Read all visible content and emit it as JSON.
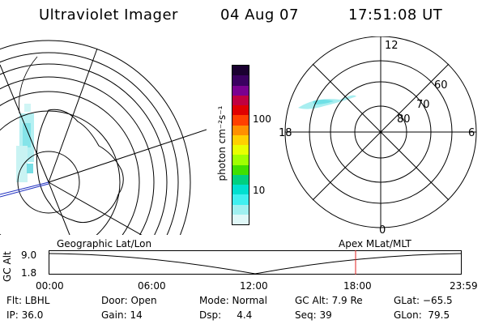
{
  "header": {
    "instrument": "Ultraviolet Imager",
    "date": "04 Aug 07",
    "time": "17:51:08 UT"
  },
  "colorbar": {
    "unit_label": "photon cm⁻²s⁻¹",
    "ticks": [
      "100",
      "10"
    ],
    "colors": [
      "#1a0030",
      "#3a0060",
      "#7a0090",
      "#c00040",
      "#e00000",
      "#ff4000",
      "#ff9000",
      "#ffd000",
      "#e8ff00",
      "#a0ff00",
      "#40e000",
      "#00d080",
      "#00e0d0",
      "#40f0f0",
      "#a0f0f0",
      "#e0f8f8"
    ]
  },
  "polar_map": {
    "mlt_labels": [
      "12",
      "18",
      "6",
      "0"
    ],
    "lat_labels": [
      "60",
      "70",
      "80"
    ]
  },
  "timeline": {
    "axis_label": "GC Alt",
    "y_ticks": [
      "9.0",
      "1.8"
    ],
    "left_caption": "Geographic Lat/Lon",
    "right_caption": "Apex  MLat/MLT",
    "x_ticks": [
      "00:00",
      "06:00",
      "12:00",
      "18:00",
      "23:59"
    ],
    "marker_fraction": 0.7438
  },
  "info": {
    "flt": "Flt: LBHL",
    "ip": "IP: 36.0",
    "door": "Door: Open",
    "gain": "Gain: 14",
    "mode": "Mode: Normal",
    "dsp": "Dsp:     4.4",
    "gc_alt": "GC Alt: 7.9 Re",
    "seq": "Seq: 39",
    "glat": "GLat: −65.5",
    "glon": "GLon:  79.5"
  }
}
